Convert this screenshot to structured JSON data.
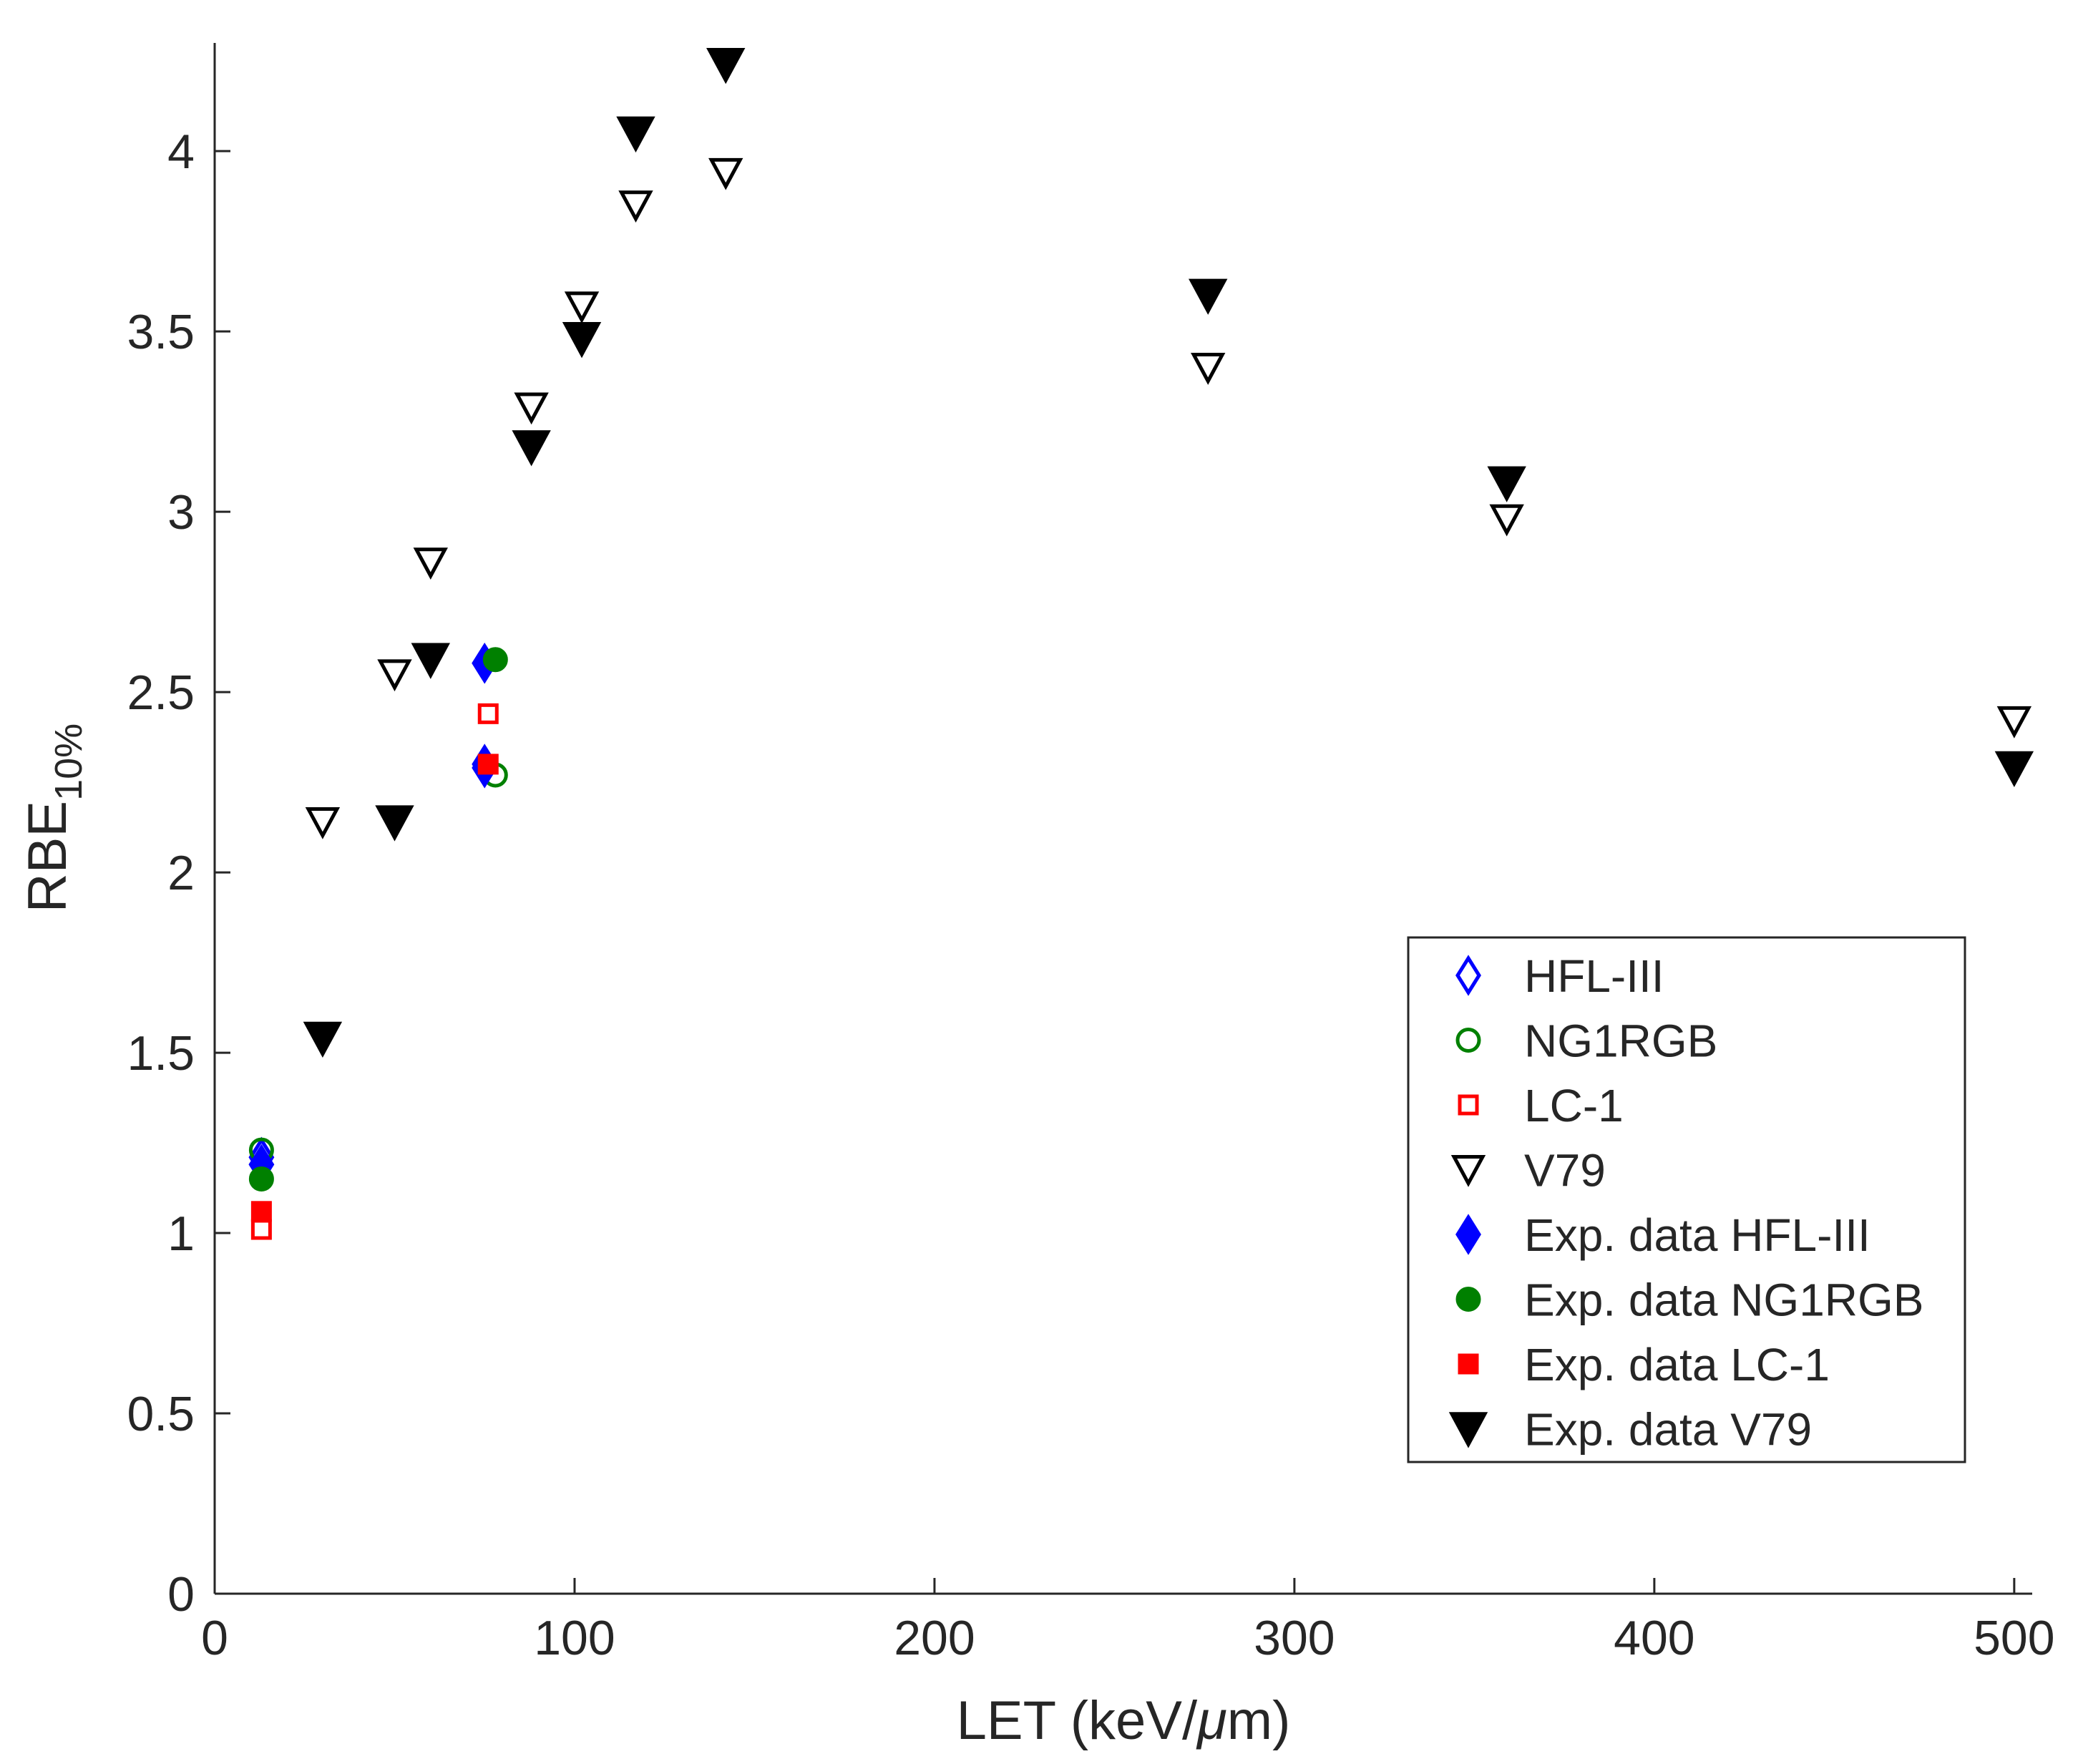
{
  "chart_data": {
    "type": "scatter",
    "title": "",
    "xlabel": "LET (keV/",
    "xlabel_mu": "μ",
    "xlabel_end": "m)",
    "ylabel": "RBE",
    "ylabel_sub": "10%",
    "xlim": [
      0,
      505
    ],
    "ylim": [
      0,
      4.3
    ],
    "xticks": [
      0,
      100,
      200,
      300,
      400,
      500
    ],
    "xtick_labels": [
      "0",
      "100",
      "200",
      "300",
      "400",
      "500"
    ],
    "yticks": [
      0,
      0.5,
      1,
      1.5,
      2,
      2.5,
      3,
      3.5,
      4
    ],
    "ytick_labels": [
      "0",
      "0.5",
      "1",
      "1.5",
      "2",
      "2.5",
      "3",
      "3.5",
      "4"
    ],
    "grid": false,
    "legend_position": "lower-right",
    "series": [
      {
        "name": "HFL-III",
        "marker": "diamond-open",
        "color": "#0000ff",
        "points": [
          [
            13,
            1.21
          ],
          [
            75,
            2.58
          ],
          [
            75,
            2.3
          ]
        ]
      },
      {
        "name": "NG1RGB",
        "marker": "circle-open",
        "color": "#008000",
        "points": [
          [
            13,
            1.23
          ],
          [
            78,
            2.27
          ]
        ]
      },
      {
        "name": "LC-1",
        "marker": "square-open",
        "color": "#ff0000",
        "points": [
          [
            13,
            1.01
          ],
          [
            76,
            2.44
          ]
        ]
      },
      {
        "name": "V79",
        "marker": "triangle-down-open",
        "color": "#000000",
        "points": [
          [
            30,
            2.14
          ],
          [
            50,
            2.55
          ],
          [
            60,
            2.86
          ],
          [
            88,
            3.29
          ],
          [
            102,
            3.57
          ],
          [
            117,
            3.85
          ],
          [
            142,
            3.94
          ],
          [
            276,
            3.4
          ],
          [
            359,
            2.98
          ],
          [
            500,
            2.42
          ]
        ]
      },
      {
        "name": "Exp. data HFL-III",
        "marker": "diamond-filled",
        "color": "#0000ff",
        "points": [
          [
            13,
            1.19
          ],
          [
            75,
            2.58
          ],
          [
            75,
            2.29
          ]
        ]
      },
      {
        "name": "Exp. data NG1RGB",
        "marker": "circle-filled",
        "color": "#008000",
        "points": [
          [
            13,
            1.15
          ],
          [
            78,
            2.59
          ]
        ]
      },
      {
        "name": "Exp. data LC-1",
        "marker": "square-filled",
        "color": "#ff0000",
        "points": [
          [
            13,
            1.06
          ],
          [
            76,
            2.3
          ]
        ]
      },
      {
        "name": "Exp. data V79",
        "marker": "triangle-down-filled",
        "color": "#000000",
        "points": [
          [
            30,
            1.54
          ],
          [
            50,
            2.14
          ],
          [
            60,
            2.59
          ],
          [
            88,
            3.18
          ],
          [
            102,
            3.48
          ],
          [
            117,
            4.05
          ],
          [
            142,
            4.24
          ],
          [
            276,
            3.6
          ],
          [
            359,
            3.08
          ],
          [
            500,
            2.29
          ]
        ]
      }
    ]
  }
}
